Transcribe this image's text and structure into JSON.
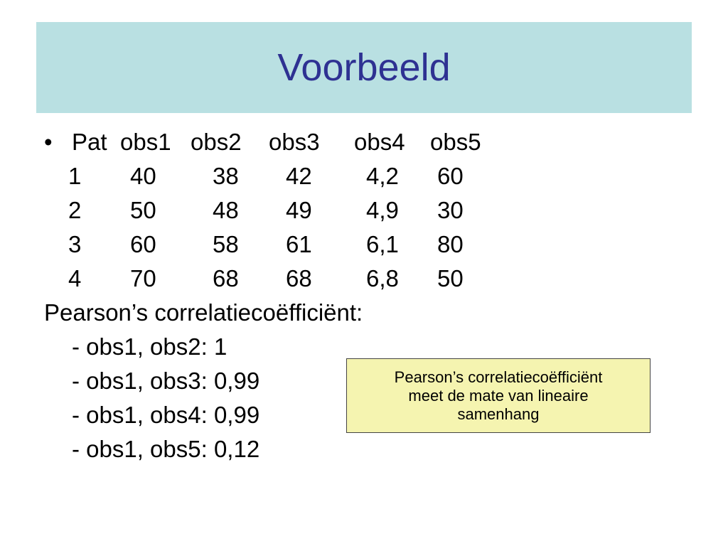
{
  "slide": {
    "title": "Voorbeeld",
    "bullet_glyph": "•"
  },
  "table": {
    "headers": [
      "Pat",
      "obs1",
      "obs2",
      "obs3",
      "obs4",
      "obs5"
    ],
    "rows": [
      [
        "1",
        "40",
        "38",
        "42",
        "4,2",
        "60"
      ],
      [
        "2",
        "50",
        "48",
        "49",
        "4,9",
        "30"
      ],
      [
        "3",
        "60",
        "58",
        "61",
        "6,1",
        "80"
      ],
      [
        "4",
        "70",
        "68",
        "68",
        "6,8",
        "50"
      ]
    ]
  },
  "correlation": {
    "heading": "Pearson’s correlatiecoëfficiënt:",
    "items": [
      "- obs1, obs2: 1",
      "- obs1, obs3: 0,99",
      "- obs1, obs4: 0,99",
      "- obs1, obs5: 0,12"
    ]
  },
  "note": {
    "lines": [
      "Pearson’s correlatiecoëfficiënt",
      "meet de mate van lineaire",
      "samenhang"
    ]
  },
  "colors": {
    "title_bar_bg": "#b9e0e2",
    "title_text": "#2e3192",
    "note_bg": "#f5f4b0"
  }
}
